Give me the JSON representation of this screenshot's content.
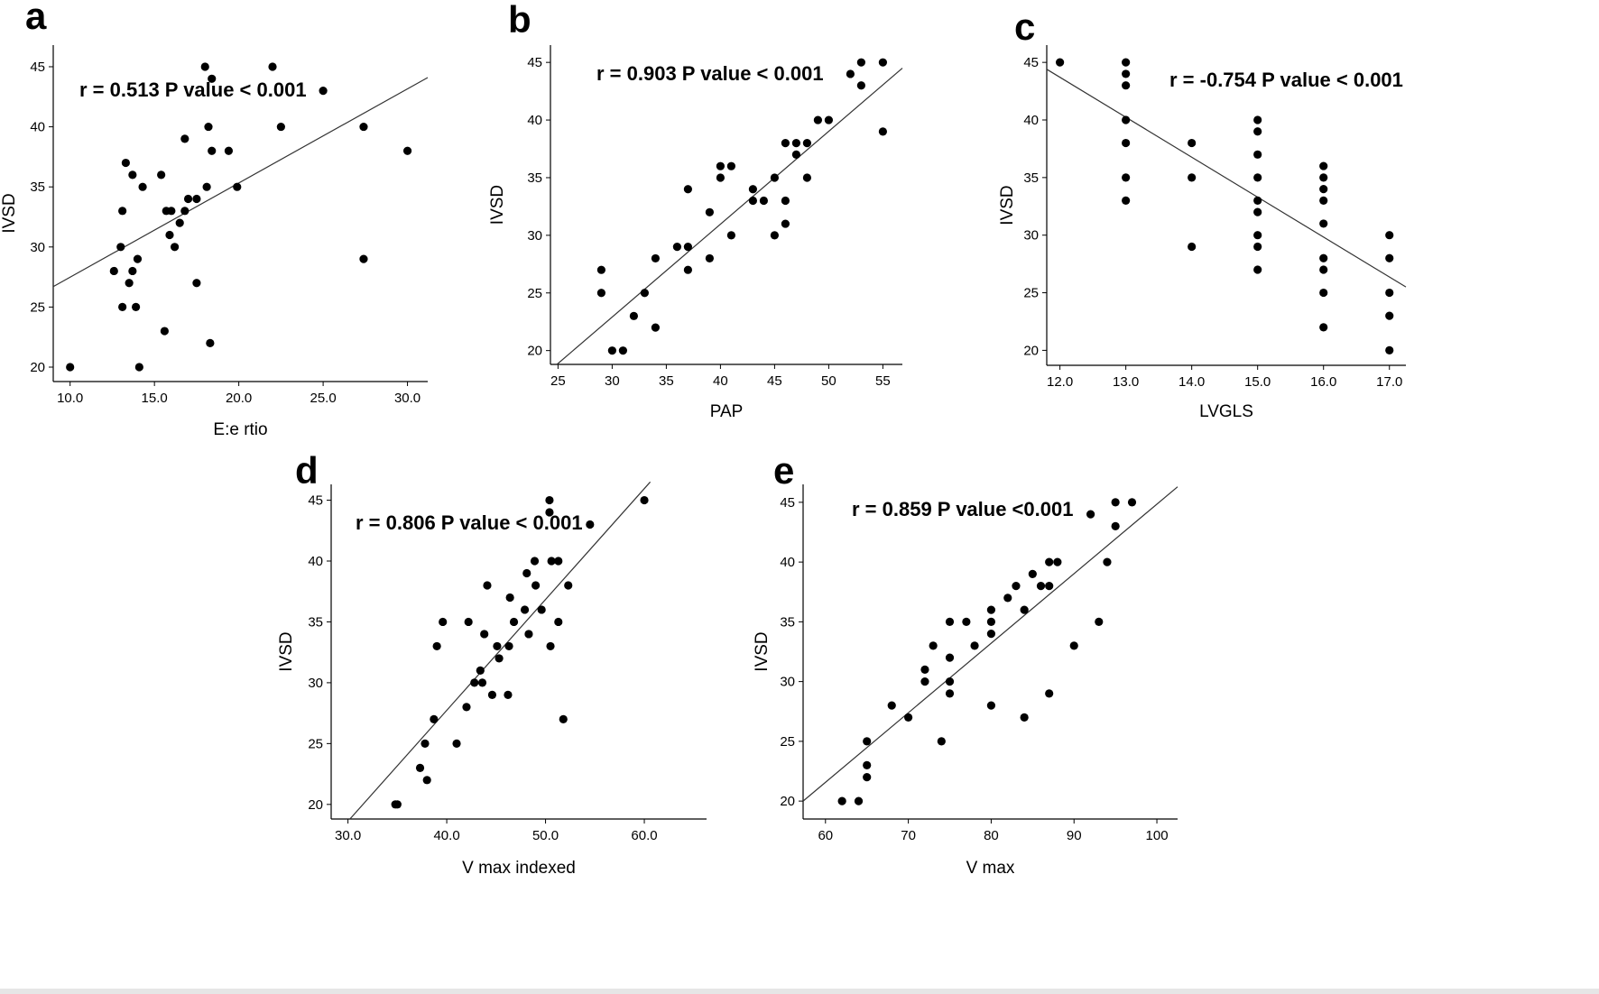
{
  "chart_data": [
    {
      "panel": "a",
      "type": "scatter",
      "annotation": "r = 0.513   P value < 0.001",
      "xlabel": "E:e rtio",
      "ylabel": "IVSD",
      "xlim": [
        9,
        31.2
      ],
      "ylim": [
        18.8,
        46.8
      ],
      "xticks": [
        10,
        15,
        20,
        25,
        30
      ],
      "xtick_labels": [
        "10.0",
        "15.0",
        "20.0",
        "25.0",
        "30.0"
      ],
      "yticks": [
        20,
        25,
        30,
        35,
        40,
        45
      ],
      "ytick_labels": [
        "20",
        "25",
        "30",
        "35",
        "40",
        "45"
      ],
      "fit_line": {
        "x": [
          9,
          31.2
        ],
        "y": [
          26.7,
          44.1
        ]
      },
      "points": [
        [
          10,
          20
        ],
        [
          12.6,
          28
        ],
        [
          13,
          30
        ],
        [
          13.1,
          33
        ],
        [
          13.1,
          25
        ],
        [
          13.3,
          37
        ],
        [
          13.5,
          27
        ],
        [
          13.7,
          36
        ],
        [
          13.7,
          28
        ],
        [
          13.9,
          25
        ],
        [
          14,
          29
        ],
        [
          14.1,
          20
        ],
        [
          14.3,
          35
        ],
        [
          15.4,
          36
        ],
        [
          15.6,
          23
        ],
        [
          15.7,
          33
        ],
        [
          15.9,
          31
        ],
        [
          16,
          33
        ],
        [
          16.2,
          30
        ],
        [
          16.5,
          32
        ],
        [
          16.8,
          39
        ],
        [
          16.8,
          33
        ],
        [
          17,
          34
        ],
        [
          17.5,
          34
        ],
        [
          17.5,
          27
        ],
        [
          18,
          45
        ],
        [
          18.1,
          35
        ],
        [
          18.2,
          40
        ],
        [
          18.3,
          22
        ],
        [
          18.4,
          44
        ],
        [
          18.4,
          38
        ],
        [
          19.4,
          38
        ],
        [
          19.9,
          35
        ],
        [
          22,
          45
        ],
        [
          22.5,
          40
        ],
        [
          25,
          43
        ],
        [
          27.4,
          40
        ],
        [
          27.4,
          29
        ],
        [
          30,
          38
        ]
      ]
    },
    {
      "panel": "b",
      "type": "scatter",
      "annotation": "r = 0.903    P value < 0.001",
      "xlabel": "PAP",
      "ylabel": "IVSD",
      "xlim": [
        24.3,
        56.8
      ],
      "ylim": [
        18.8,
        46.5
      ],
      "xticks": [
        25,
        30,
        35,
        40,
        45,
        50,
        55
      ],
      "xtick_labels": [
        "25",
        "30",
        "35",
        "40",
        "45",
        "50",
        "55"
      ],
      "yticks": [
        20,
        25,
        30,
        35,
        40,
        45
      ],
      "ytick_labels": [
        "20",
        "25",
        "30",
        "35",
        "40",
        "45"
      ],
      "fit_line": {
        "x": [
          24.9,
          56.8
        ],
        "y": [
          18.8,
          44.5
        ]
      },
      "points": [
        [
          29,
          27
        ],
        [
          29,
          25
        ],
        [
          30,
          20
        ],
        [
          31,
          20
        ],
        [
          32,
          23
        ],
        [
          33,
          25
        ],
        [
          34,
          28
        ],
        [
          34,
          22
        ],
        [
          36,
          29
        ],
        [
          37,
          34
        ],
        [
          37,
          29
        ],
        [
          37,
          27
        ],
        [
          39,
          32
        ],
        [
          39,
          28
        ],
        [
          40,
          36
        ],
        [
          40,
          35
        ],
        [
          41,
          36
        ],
        [
          41,
          30
        ],
        [
          43,
          34
        ],
        [
          43,
          33
        ],
        [
          44,
          33
        ],
        [
          45,
          35
        ],
        [
          45,
          30
        ],
        [
          46,
          38
        ],
        [
          46,
          33
        ],
        [
          46,
          31
        ],
        [
          47,
          38
        ],
        [
          47,
          37
        ],
        [
          48,
          38
        ],
        [
          48,
          35
        ],
        [
          49,
          40
        ],
        [
          50,
          40
        ],
        [
          52,
          44
        ],
        [
          53,
          45
        ],
        [
          53,
          43
        ],
        [
          55,
          45
        ],
        [
          55,
          39
        ]
      ]
    },
    {
      "panel": "c",
      "type": "scatter",
      "annotation": "r = -0.754   P value < 0.001",
      "xlabel": "LVGLS",
      "ylabel": "IVSD",
      "xlim": [
        11.8,
        17.25
      ],
      "ylim": [
        18.7,
        46.5
      ],
      "xticks": [
        12,
        13,
        14,
        15,
        16,
        17
      ],
      "xtick_labels": [
        "12.0",
        "13.0",
        "14.0",
        "15.0",
        "16.0",
        "17.0"
      ],
      "yticks": [
        20,
        25,
        30,
        35,
        40,
        45
      ],
      "ytick_labels": [
        "20",
        "25",
        "30",
        "35",
        "40",
        "45"
      ],
      "fit_line": {
        "x": [
          11.8,
          17.25
        ],
        "y": [
          44.4,
          25.5
        ]
      },
      "points": [
        [
          12,
          45
        ],
        [
          13,
          45
        ],
        [
          13,
          44
        ],
        [
          13,
          43
        ],
        [
          13,
          40
        ],
        [
          13,
          38
        ],
        [
          13,
          35
        ],
        [
          13,
          33
        ],
        [
          14,
          38
        ],
        [
          14,
          35
        ],
        [
          14,
          29
        ],
        [
          15,
          40
        ],
        [
          15,
          39
        ],
        [
          15,
          37
        ],
        [
          15,
          35
        ],
        [
          15,
          33
        ],
        [
          15,
          32
        ],
        [
          15,
          30
        ],
        [
          15,
          29
        ],
        [
          15,
          27
        ],
        [
          16,
          36
        ],
        [
          16,
          35
        ],
        [
          16,
          34
        ],
        [
          16,
          33
        ],
        [
          16,
          31
        ],
        [
          16,
          28
        ],
        [
          16,
          27
        ],
        [
          16,
          25
        ],
        [
          16,
          22
        ],
        [
          17,
          30
        ],
        [
          17,
          28
        ],
        [
          17,
          25
        ],
        [
          17,
          23
        ],
        [
          17,
          20
        ]
      ]
    },
    {
      "panel": "d",
      "type": "scatter",
      "annotation": "r = 0.806 P value < 0.001",
      "xlabel": "V max indexed",
      "ylabel": "IVSD",
      "xlim": [
        28.3,
        66.3
      ],
      "ylim": [
        18.8,
        46.3
      ],
      "xticks": [
        30,
        40,
        50,
        60
      ],
      "xtick_labels": [
        "30.0",
        "40.0",
        "50.0",
        "60.0"
      ],
      "yticks": [
        20,
        25,
        30,
        35,
        40,
        45
      ],
      "ytick_labels": [
        "20",
        "25",
        "30",
        "35",
        "40",
        "45"
      ],
      "fit_line": {
        "x": [
          30.2,
          60.6
        ],
        "y": [
          18.8,
          46.5
        ]
      },
      "points": [
        [
          34.8,
          20
        ],
        [
          35,
          20
        ],
        [
          37.3,
          23
        ],
        [
          37.8,
          25
        ],
        [
          38,
          22
        ],
        [
          38.7,
          27
        ],
        [
          39,
          33
        ],
        [
          39.6,
          35
        ],
        [
          41,
          25
        ],
        [
          42,
          28
        ],
        [
          42.2,
          35
        ],
        [
          42.8,
          30
        ],
        [
          43.4,
          31
        ],
        [
          43.6,
          30
        ],
        [
          43.8,
          34
        ],
        [
          44.1,
          38
        ],
        [
          44.6,
          29
        ],
        [
          45.1,
          33
        ],
        [
          45.3,
          32
        ],
        [
          46.2,
          29
        ],
        [
          46.3,
          33
        ],
        [
          46.4,
          37
        ],
        [
          46.8,
          35
        ],
        [
          47.9,
          36
        ],
        [
          48.1,
          39
        ],
        [
          48.3,
          34
        ],
        [
          48.9,
          40
        ],
        [
          49,
          38
        ],
        [
          49.6,
          36
        ],
        [
          50.4,
          45
        ],
        [
          50.4,
          44
        ],
        [
          50.5,
          33
        ],
        [
          50.6,
          40
        ],
        [
          51.3,
          40
        ],
        [
          51.3,
          35
        ],
        [
          51.8,
          27
        ],
        [
          52.3,
          38
        ],
        [
          54.5,
          43
        ],
        [
          60,
          45
        ]
      ]
    },
    {
      "panel": "e",
      "type": "scatter",
      "annotation": "r = 0.859   P value <0.001",
      "xlabel": "V max",
      "ylabel": "IVSD",
      "xlim": [
        57.3,
        102.5
      ],
      "ylim": [
        18.5,
        46.5
      ],
      "xticks": [
        60,
        70,
        80,
        90,
        100
      ],
      "xtick_labels": [
        "60",
        "70",
        "80",
        "90",
        "100"
      ],
      "yticks": [
        20,
        25,
        30,
        35,
        40,
        45
      ],
      "ytick_labels": [
        "20",
        "25",
        "30",
        "35",
        "40",
        "45"
      ],
      "fit_line": {
        "x": [
          57.3,
          102.5
        ],
        "y": [
          20,
          46.3
        ]
      },
      "points": [
        [
          62,
          20
        ],
        [
          64,
          20
        ],
        [
          65,
          25
        ],
        [
          65,
          23
        ],
        [
          65,
          22
        ],
        [
          68,
          28
        ],
        [
          70,
          27
        ],
        [
          72,
          31
        ],
        [
          72,
          30
        ],
        [
          73,
          33
        ],
        [
          74,
          25
        ],
        [
          75,
          35
        ],
        [
          75,
          32
        ],
        [
          75,
          30
        ],
        [
          75,
          29
        ],
        [
          77,
          35
        ],
        [
          78,
          33
        ],
        [
          80,
          36
        ],
        [
          80,
          35
        ],
        [
          80,
          34
        ],
        [
          80,
          28
        ],
        [
          82,
          37
        ],
        [
          83,
          38
        ],
        [
          84,
          36
        ],
        [
          84,
          27
        ],
        [
          85,
          39
        ],
        [
          86,
          38
        ],
        [
          87,
          40
        ],
        [
          87,
          38
        ],
        [
          87,
          29
        ],
        [
          88,
          40
        ],
        [
          90,
          33
        ],
        [
          92,
          44
        ],
        [
          93,
          35
        ],
        [
          94,
          40
        ],
        [
          95,
          45
        ],
        [
          95,
          43
        ],
        [
          97,
          45
        ]
      ]
    }
  ]
}
